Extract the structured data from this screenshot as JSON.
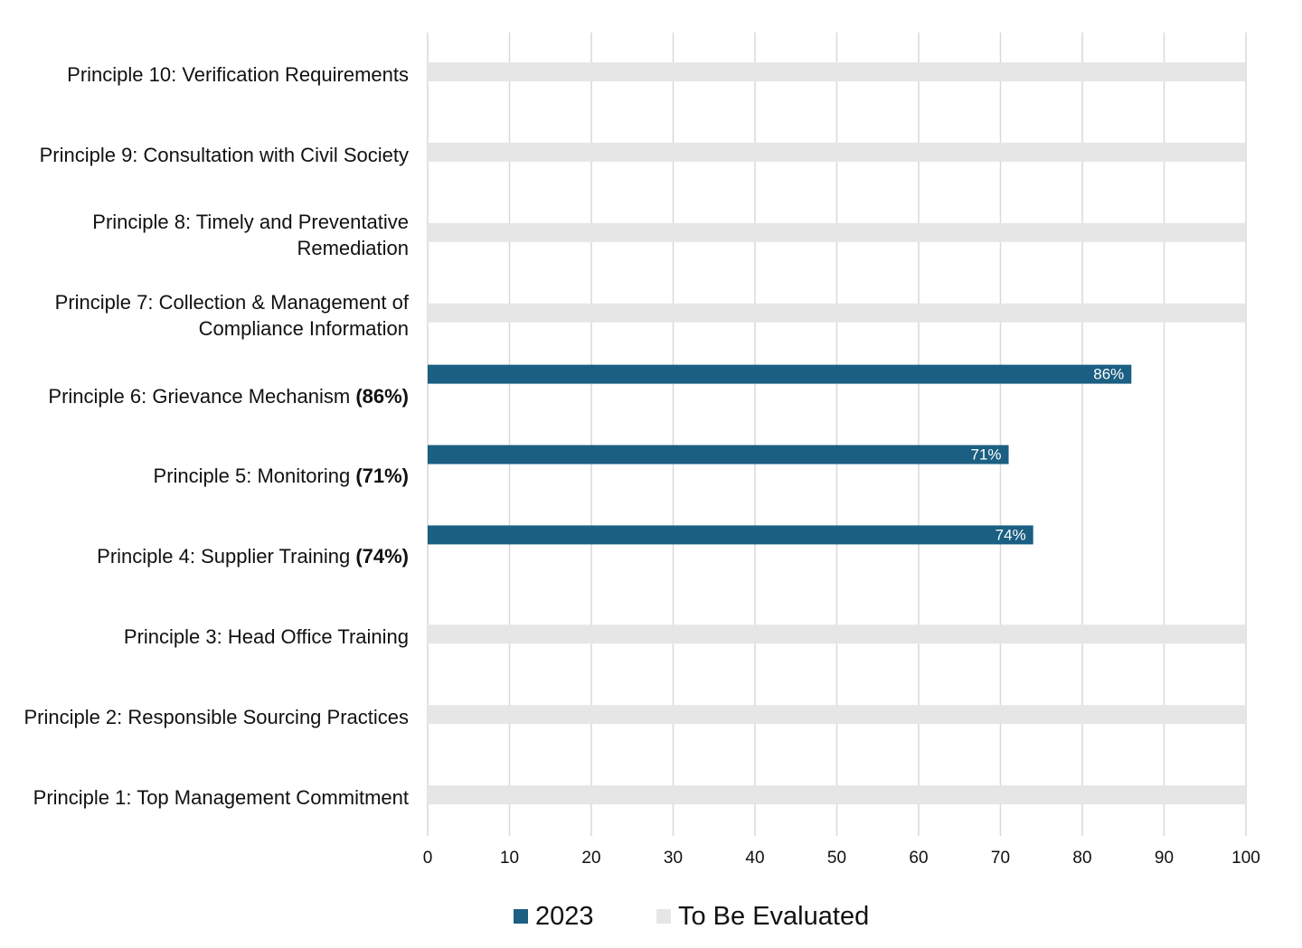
{
  "chart_data": {
    "type": "bar",
    "orientation": "horizontal",
    "categories": [
      "Principle 1: Top Management Commitment",
      "Principle 2: Responsible Sourcing Practices",
      "Principle 3: Head Office Training",
      "Principle 4: Supplier Training (74%)",
      "Principle 5: Monitoring (71%)",
      "Principle 6: Grievance Mechanism (86%)",
      "Principle 7: Collection & Management of Compliance Information",
      "Principle 8: Timely and Preventative Remediation",
      "Principle 9: Consultation with Civil Society",
      "Principle 10: Verification Requirements"
    ],
    "category_label_parts": [
      {
        "text": "Principle 1: Top Management Commitment",
        "bold": ""
      },
      {
        "text": "Principle 2: Responsible Sourcing Practices",
        "bold": ""
      },
      {
        "text": "Principle 3: Head Office Training",
        "bold": ""
      },
      {
        "text": "Principle 4: Supplier Training ",
        "bold": "(74%)"
      },
      {
        "text": "Principle 5: Monitoring ",
        "bold": "(71%)"
      },
      {
        "text": "Principle 6: Grievance Mechanism ",
        "bold": "(86%)"
      },
      {
        "text": "Principle 7: Collection & Management of Compliance Information",
        "bold": ""
      },
      {
        "text": "Principle 8: Timely and Preventative Remediation",
        "bold": ""
      },
      {
        "text": "Principle 9: Consultation with Civil Society",
        "bold": ""
      },
      {
        "text": "Principle 10: Verification Requirements",
        "bold": ""
      }
    ],
    "series": [
      {
        "name": "2023",
        "color": "#1b5f82",
        "values": [
          null,
          null,
          null,
          74,
          71,
          86,
          null,
          null,
          null,
          null
        ],
        "data_labels": [
          "",
          "",
          "",
          "74%",
          "71%",
          "86%",
          "",
          "",
          "",
          ""
        ]
      },
      {
        "name": "To Be Evaluated",
        "color": "#e6e6e6",
        "values": [
          100,
          100,
          100,
          null,
          null,
          null,
          100,
          100,
          100,
          100
        ]
      }
    ],
    "xlim": [
      0,
      100
    ],
    "x_ticks": [
      "0",
      "10",
      "20",
      "30",
      "40",
      "50",
      "60",
      "70",
      "80",
      "90",
      "100"
    ],
    "grid": "vertical",
    "legend_position": "bottom",
    "gridline_color": "#d9d9d9"
  }
}
